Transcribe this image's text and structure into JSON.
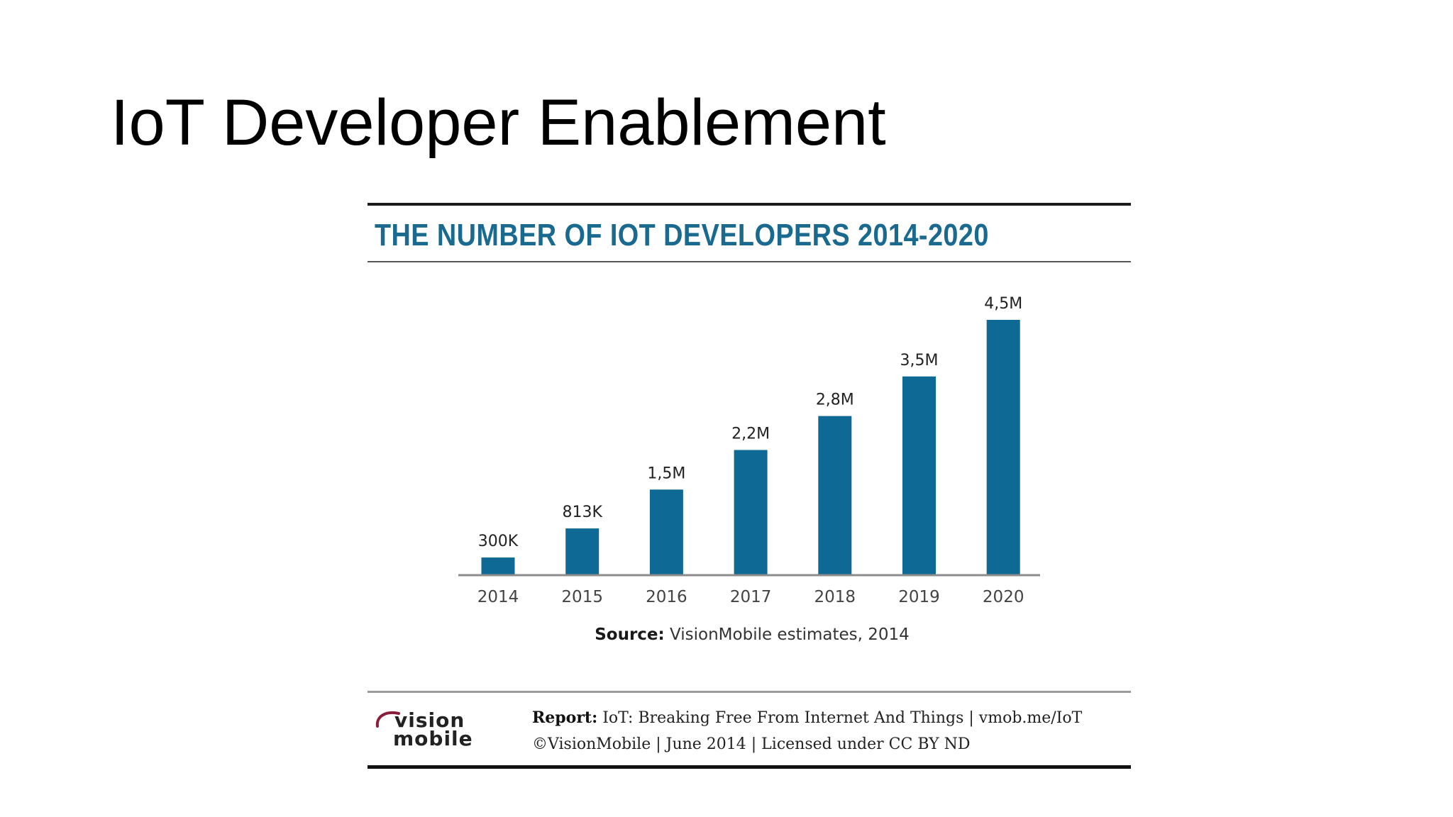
{
  "slide": {
    "title": "IoT Developer Enablement"
  },
  "infographic": {
    "source_label": "Source:",
    "source_text": "VisionMobile estimates, 2014",
    "logo_line1": "vision",
    "logo_line2": "mobile",
    "report_label": "Report:",
    "report_text": "IoT: Breaking Free From Internet And Things | vmob.me/IoT",
    "copyright": "©VisionMobile | June 2014 | Licensed under CC BY ND"
  },
  "colors": {
    "bar": "#0e6994",
    "title": "#1a6a8f",
    "axis": "#8c8c8c",
    "logo_swoosh": "#8a1f3c"
  },
  "chart_data": {
    "type": "bar",
    "title": "THE NUMBER OF IOT DEVELOPERS 2014-2020",
    "xlabel": "",
    "ylabel": "",
    "categories": [
      "2014",
      "2015",
      "2016",
      "2017",
      "2018",
      "2019",
      "2020"
    ],
    "values": [
      0.3,
      0.813,
      1.5,
      2.2,
      2.8,
      3.5,
      4.5
    ],
    "data_labels": [
      "300K",
      "813K",
      "1,5M",
      "2,2M",
      "2,8M",
      "3,5M",
      "4,5M"
    ],
    "unit": "millions of developers",
    "ylim": [
      0,
      4.5
    ],
    "grid": false,
    "legend": "none"
  }
}
